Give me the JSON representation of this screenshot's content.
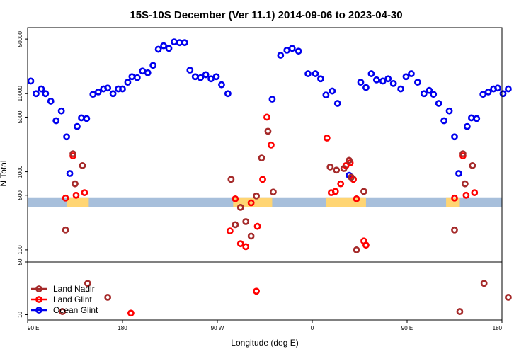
{
  "chart_data": {
    "type": "scatter",
    "title": "15S-10S December (Ver 11.1)   2014-09-06 to 2023-04-30",
    "xlabel": "Longitude (deg E)",
    "ylabel": "N Total",
    "x_ticks": [
      {
        "value": 90,
        "label": "90 E"
      },
      {
        "value": 180,
        "label": "180"
      },
      {
        "value": 270,
        "label": "90 W"
      },
      {
        "value": 360,
        "label": "0"
      },
      {
        "value": 450,
        "label": "90 E"
      },
      {
        "value": 540,
        "label": "180"
      }
    ],
    "xlim": [
      90,
      540
    ],
    "y_scale": "log",
    "top_panel": {
      "ylim": [
        70,
        70000
      ],
      "y_ticks": [
        {
          "value": 100,
          "label": "100"
        },
        {
          "value": 500,
          "label": "500"
        },
        {
          "value": 1000,
          "label": "1000"
        },
        {
          "value": 5000,
          "label": "5000"
        },
        {
          "value": 10000,
          "label": "10000"
        },
        {
          "value": 50000,
          "label": "50000"
        }
      ],
      "land_band": {
        "ymin": 350,
        "ymax": 470,
        "band_color": "#a7bfdb",
        "land_color": "#ffd573",
        "land_ranges": [
          [
            127,
            148
          ],
          [
            285,
            322
          ],
          [
            373,
            411
          ],
          [
            487,
            500
          ]
        ]
      }
    },
    "bottom_panel": {
      "ylim": [
        8.5,
        50
      ],
      "y_ticks": [
        {
          "value": 10,
          "label": "10"
        },
        {
          "value": 50,
          "label": "50"
        }
      ]
    },
    "legend": {
      "placement": "bottom-left",
      "entries": [
        {
          "name": "Land Nadir",
          "color": "#a52a2a"
        },
        {
          "name": "Land Glint",
          "color": "#ff0000"
        },
        {
          "name": "Ocean Glint",
          "color": "#0000ee"
        }
      ]
    },
    "series": [
      {
        "name": "Ocean Glint",
        "color": "#0000ee",
        "panel": "top",
        "points": [
          [
            93,
            14500
          ],
          [
            98,
            10000
          ],
          [
            103,
            11500
          ],
          [
            107,
            10000
          ],
          [
            112,
            8000
          ],
          [
            117,
            4500
          ],
          [
            122,
            6000
          ],
          [
            127,
            2800
          ],
          [
            130,
            950
          ],
          [
            137,
            3800
          ],
          [
            141,
            4900
          ],
          [
            146,
            4800
          ],
          [
            152,
            9800
          ],
          [
            157,
            10500
          ],
          [
            162,
            11500
          ],
          [
            166,
            11800
          ],
          [
            171,
            10000
          ],
          [
            176,
            11500
          ],
          [
            180,
            11500
          ],
          [
            185,
            14000
          ],
          [
            189,
            16500
          ],
          [
            194,
            16000
          ],
          [
            199,
            19500
          ],
          [
            204,
            18500
          ],
          [
            209,
            23000
          ],
          [
            214,
            37000
          ],
          [
            219,
            41000
          ],
          [
            224,
            38000
          ],
          [
            229,
            46000
          ],
          [
            234,
            45000
          ],
          [
            239,
            45000
          ],
          [
            244,
            20000
          ],
          [
            249,
            16500
          ],
          [
            254,
            16000
          ],
          [
            259,
            17500
          ],
          [
            264,
            15500
          ],
          [
            269,
            16500
          ],
          [
            274,
            13000
          ],
          [
            280,
            10000
          ],
          [
            322,
            8500
          ],
          [
            330,
            31000
          ],
          [
            336,
            36000
          ],
          [
            341,
            38000
          ],
          [
            347,
            35000
          ],
          [
            356,
            18000
          ],
          [
            363,
            18000
          ],
          [
            368,
            15500
          ],
          [
            373,
            9600
          ],
          [
            379,
            10800
          ],
          [
            384,
            7500
          ],
          [
            395,
            900
          ],
          [
            406,
            14000
          ],
          [
            411,
            12000
          ],
          [
            416,
            18000
          ],
          [
            421,
            15000
          ],
          [
            427,
            14500
          ],
          [
            432,
            15500
          ],
          [
            437,
            13500
          ],
          [
            444,
            11500
          ],
          [
            449,
            16500
          ],
          [
            454,
            18000
          ],
          [
            460,
            14000
          ],
          [
            466,
            10000
          ],
          [
            471,
            11000
          ],
          [
            475,
            9800
          ],
          [
            480,
            7500
          ],
          [
            485,
            4500
          ],
          [
            490,
            6000
          ],
          [
            495,
            2800
          ],
          [
            499,
            950
          ],
          [
            507,
            3800
          ],
          [
            511,
            4900
          ],
          [
            516,
            4800
          ],
          [
            522,
            9800
          ],
          [
            527,
            10500
          ],
          [
            532,
            11500
          ],
          [
            536,
            11800
          ],
          [
            541,
            10000
          ],
          [
            546,
            11500
          ]
        ]
      },
      {
        "name": "Land Glint",
        "color": "#ff0000",
        "panel": "top",
        "points": [
          [
            126,
            460
          ],
          [
            133,
            1600
          ],
          [
            136,
            500
          ],
          [
            144,
            540
          ],
          [
            282,
            175
          ],
          [
            287,
            450
          ],
          [
            292,
            120
          ],
          [
            297,
            110
          ],
          [
            302,
            400
          ],
          [
            308,
            200
          ],
          [
            313,
            800
          ],
          [
            317,
            5000
          ],
          [
            321,
            2200
          ],
          [
            374,
            2700
          ],
          [
            378,
            540
          ],
          [
            382,
            560
          ],
          [
            387,
            700
          ],
          [
            392,
            1200
          ],
          [
            396,
            1300
          ],
          [
            399,
            800
          ],
          [
            402,
            450
          ],
          [
            409,
            130
          ],
          [
            411,
            115
          ],
          [
            495,
            460
          ],
          [
            503,
            1600
          ],
          [
            506,
            500
          ],
          [
            514,
            540
          ]
        ]
      },
      {
        "name": "Land Nadir",
        "color": "#a52a2a",
        "panel": "top",
        "points": [
          [
            126,
            180
          ],
          [
            133,
            1700
          ],
          [
            135,
            700
          ],
          [
            142,
            1200
          ],
          [
            283,
            800
          ],
          [
            287,
            210
          ],
          [
            292,
            350
          ],
          [
            297,
            230
          ],
          [
            302,
            150
          ],
          [
            307,
            490
          ],
          [
            312,
            1500
          ],
          [
            318,
            3300
          ],
          [
            323,
            550
          ],
          [
            377,
            1150
          ],
          [
            383,
            1050
          ],
          [
            390,
            1100
          ],
          [
            395,
            1400
          ],
          [
            397,
            850
          ],
          [
            402,
            100
          ],
          [
            409,
            560
          ],
          [
            495,
            180
          ],
          [
            503,
            1700
          ],
          [
            505,
            700
          ],
          [
            512,
            1200
          ]
        ]
      },
      {
        "name": "Land Nadir",
        "color": "#a52a2a",
        "panel": "bottom",
        "points": [
          [
            123,
            11
          ],
          [
            147,
            26
          ],
          [
            166,
            17
          ],
          [
            500,
            11
          ],
          [
            523,
            26
          ],
          [
            546,
            17
          ]
        ]
      },
      {
        "name": "Land Glint",
        "color": "#ff0000",
        "panel": "bottom",
        "points": [
          [
            188,
            10.5
          ],
          [
            307,
            20.5
          ]
        ]
      }
    ]
  }
}
